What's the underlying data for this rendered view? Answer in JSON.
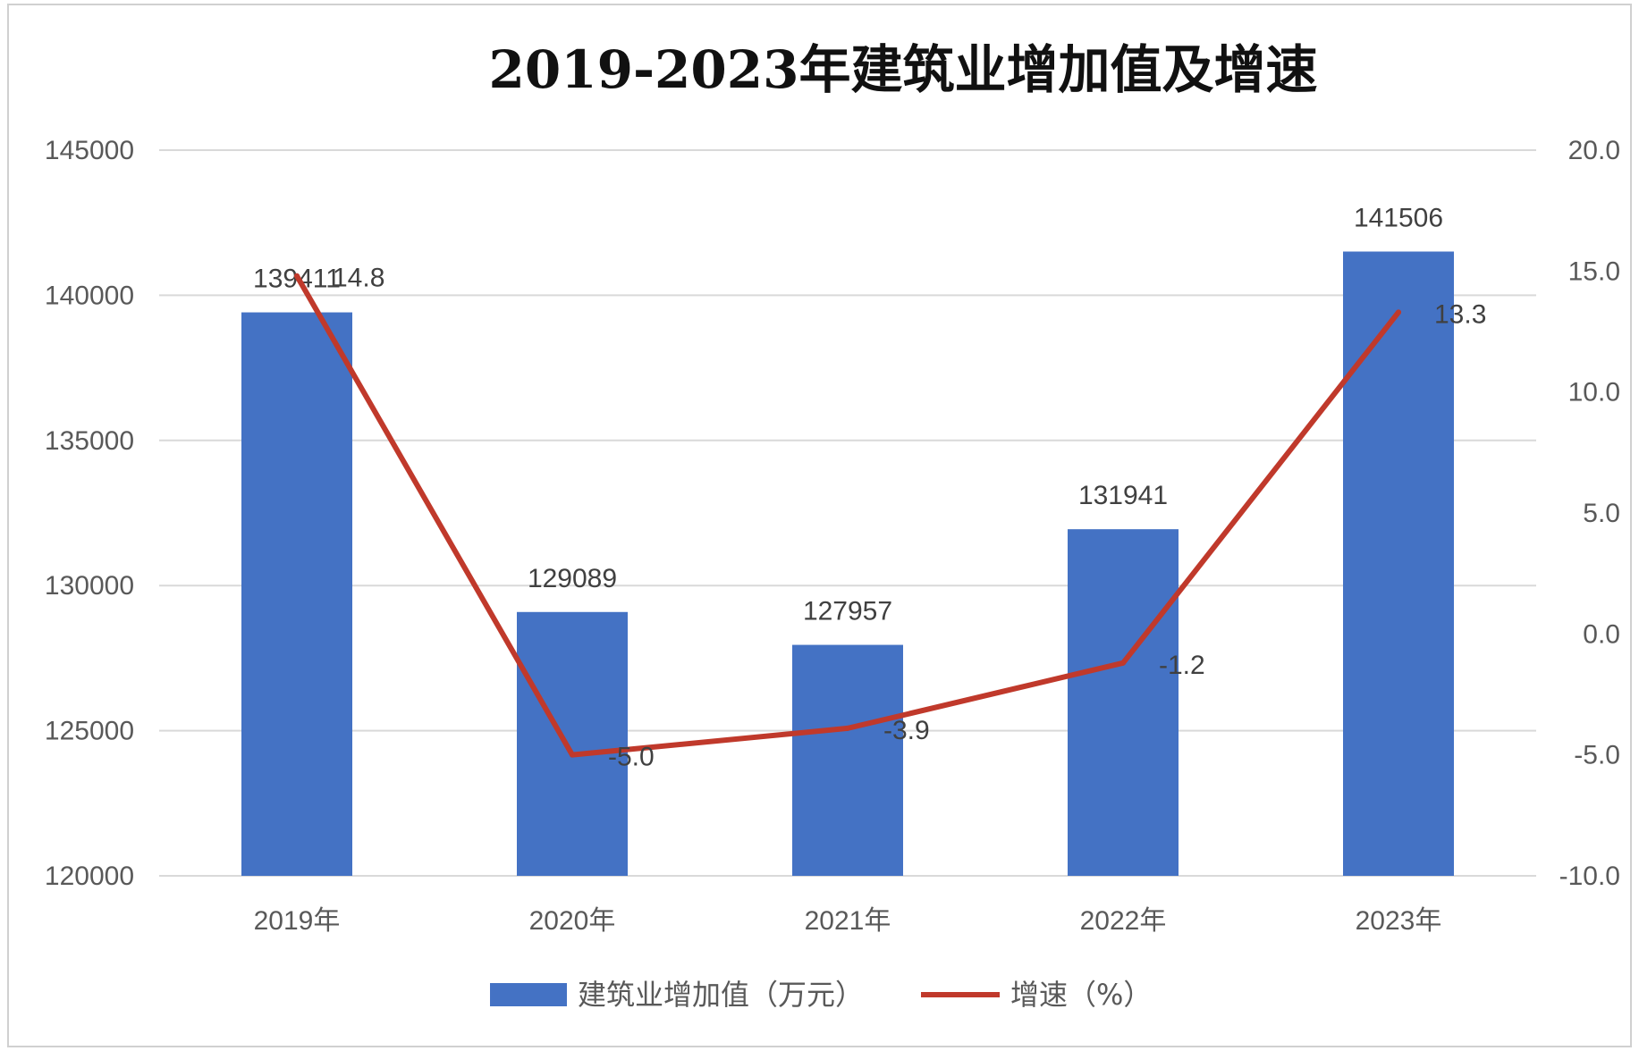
{
  "chart_data": {
    "type": "bar",
    "title": "2019-2023年建筑业增加值及增速",
    "categories": [
      "2019年",
      "2020年",
      "2021年",
      "2022年",
      "2023年"
    ],
    "series": [
      {
        "name": "建筑业增加值（万元）",
        "type": "bar",
        "axis": "left",
        "color": "#4472c4",
        "values": [
          139411,
          129089,
          127957,
          131941,
          141506
        ],
        "labels": [
          "139411",
          "129089",
          "127957",
          "131941",
          "141506"
        ]
      },
      {
        "name": "增速（%）",
        "type": "line",
        "axis": "right",
        "color": "#c0392b",
        "values": [
          14.8,
          -5.0,
          -3.9,
          -1.2,
          13.3
        ],
        "labels": [
          "14.8",
          "-5.0",
          "-3.9",
          "-1.2",
          "13.3"
        ]
      }
    ],
    "y_left": {
      "min": 120000,
      "max": 145000,
      "ticks": [
        "120000",
        "125000",
        "130000",
        "135000",
        "140000",
        "145000"
      ]
    },
    "y_right": {
      "min": -10,
      "max": 20,
      "ticks": [
        "-10.0",
        "-5.0",
        "0.0",
        "5.0",
        "10.0",
        "15.0",
        "20.0"
      ]
    },
    "grid": true,
    "legend_position": "bottom"
  }
}
